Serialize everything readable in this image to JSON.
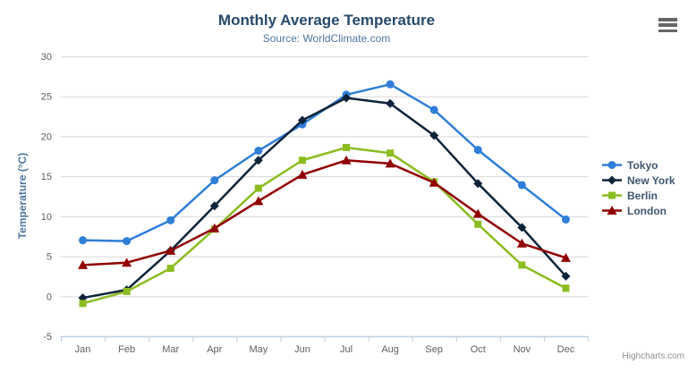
{
  "chart": {
    "credits": "Highcharts.com",
    "icons": {
      "export_menu": "hamburger-icon"
    }
  },
  "chart_data": {
    "type": "line",
    "title": "Monthly Average Temperature",
    "subtitle": "Source: WorldClimate.com",
    "xlabel": "",
    "ylabel": "Temperature (°C)",
    "categories": [
      "Jan",
      "Feb",
      "Mar",
      "Apr",
      "May",
      "Jun",
      "Jul",
      "Aug",
      "Sep",
      "Oct",
      "Nov",
      "Dec"
    ],
    "series": [
      {
        "name": "Tokyo",
        "color": "#2f7ed8",
        "marker": "circle",
        "values": [
          7.0,
          6.9,
          9.5,
          14.5,
          18.2,
          21.5,
          25.2,
          26.5,
          23.3,
          18.3,
          13.9,
          9.6
        ]
      },
      {
        "name": "New York",
        "color": "#0d233a",
        "marker": "diamond",
        "values": [
          -0.2,
          0.8,
          5.7,
          11.3,
          17.0,
          22.0,
          24.8,
          24.1,
          20.1,
          14.1,
          8.6,
          2.5
        ]
      },
      {
        "name": "Berlin",
        "color": "#8bbc21",
        "marker": "square",
        "values": [
          -0.9,
          0.6,
          3.5,
          8.4,
          13.5,
          17.0,
          18.6,
          17.9,
          14.3,
          9.0,
          3.9,
          1.0
        ]
      },
      {
        "name": "London",
        "color": "#910000",
        "marker": "triangle",
        "values": [
          3.9,
          4.2,
          5.7,
          8.5,
          11.9,
          15.2,
          17.0,
          16.6,
          14.2,
          10.3,
          6.6,
          4.8
        ]
      }
    ],
    "ylim": [
      -5,
      30
    ],
    "ytick_step": 5,
    "grid": true,
    "legend_position": "right",
    "colors": {
      "grid_line": "#D8D8D8",
      "axis_line": "#C0D0E0",
      "tick_label": "#606060",
      "title": "#274b6d",
      "subtitle": "#4d759e",
      "legend_text": "#3E576F",
      "credits": "#909090"
    }
  }
}
